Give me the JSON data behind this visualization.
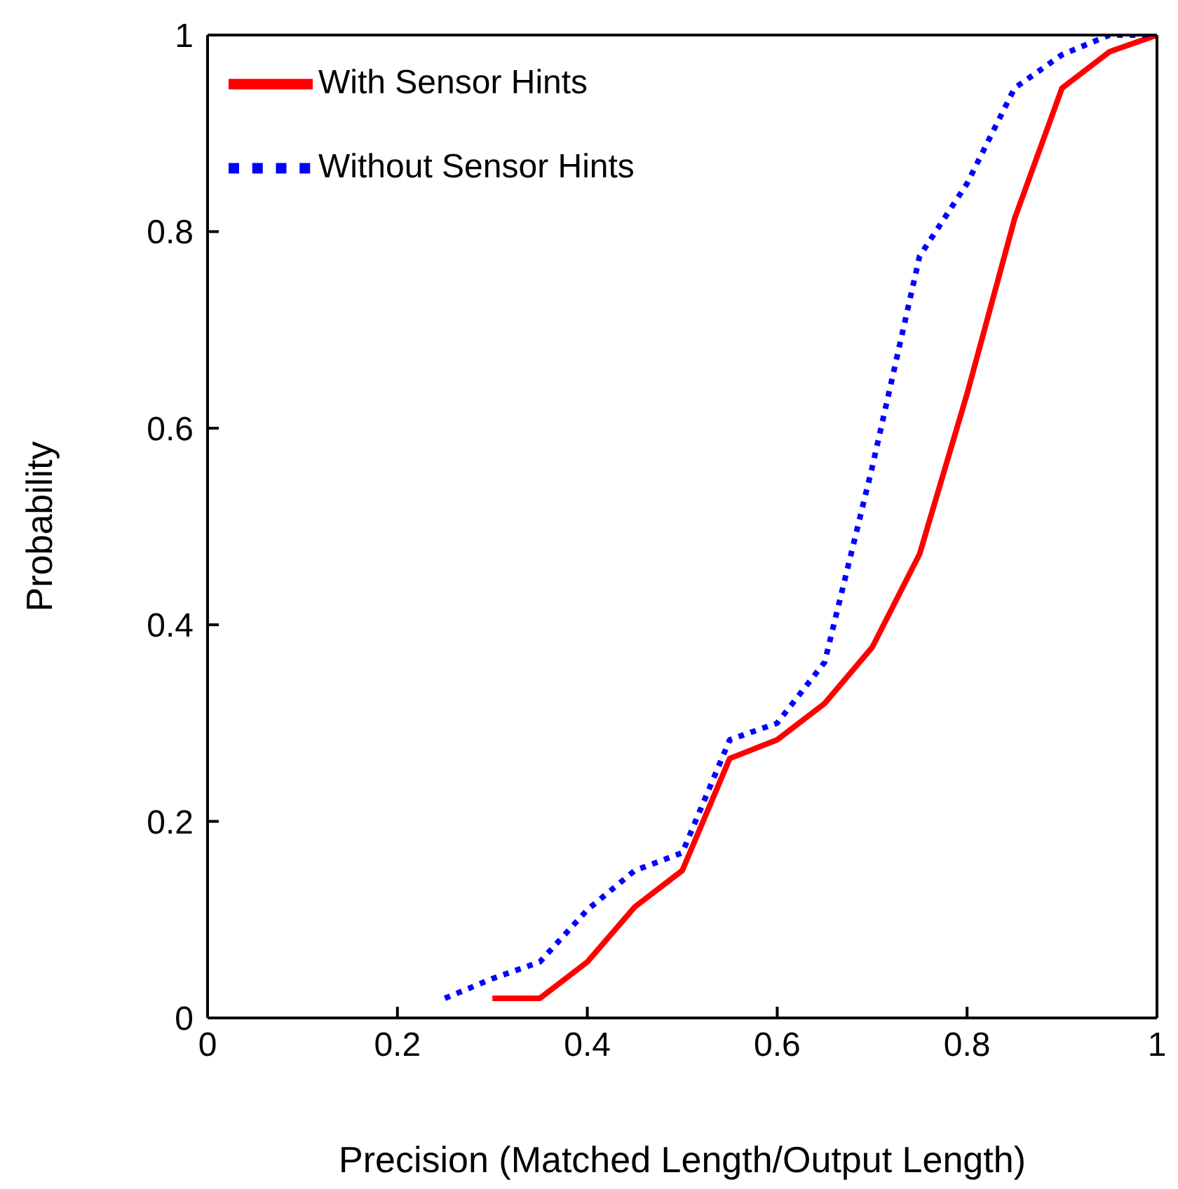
{
  "chart_data": {
    "type": "line",
    "xlabel": "Precision (Matched Length/Output Length)",
    "ylabel": "Probability",
    "xlim": [
      0,
      1
    ],
    "ylim": [
      0,
      1
    ],
    "xticks": [
      0,
      0.2,
      0.4,
      0.6,
      0.8,
      1
    ],
    "yticks": [
      0,
      0.2,
      0.4,
      0.6,
      0.8,
      1
    ],
    "grid": false,
    "legend": "top left",
    "marker": "none",
    "series": [
      {
        "name": "With Sensor Hints",
        "color": "#ff0000",
        "line_style": "solid",
        "x": [
          0.3,
          0.35,
          0.4,
          0.45,
          0.5,
          0.55,
          0.6,
          0.65,
          0.7,
          0.75,
          0.8,
          0.85,
          0.9,
          0.95,
          1
        ],
        "values": [
          0.02,
          0.02,
          0.057,
          0.113,
          0.15,
          0.264,
          0.283,
          0.32,
          0.377,
          0.472,
          0.635,
          0.813,
          0.946,
          0.983,
          1
        ]
      },
      {
        "name": "Without Sensor Hints",
        "color": "#0000ff",
        "line_style": "dotted",
        "x": [
          0.25,
          0.3,
          0.35,
          0.4,
          0.45,
          0.5,
          0.55,
          0.6,
          0.65,
          0.7,
          0.75,
          0.8,
          0.85,
          0.9,
          0.95,
          1
        ],
        "values": [
          0.02,
          0.04,
          0.057,
          0.11,
          0.15,
          0.168,
          0.283,
          0.3,
          0.362,
          0.56,
          0.775,
          0.849,
          0.946,
          0.98,
          1,
          1
        ]
      }
    ]
  }
}
